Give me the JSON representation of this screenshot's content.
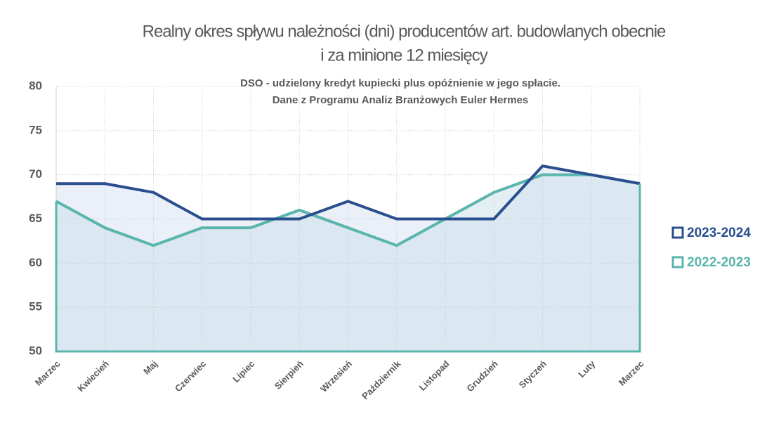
{
  "chart_data": {
    "type": "line",
    "title": [
      "Realny okres spływu należności (dni) producentów art. budowlanych obecnie",
      "i za minione 12 miesięcy"
    ],
    "subtitle": [
      "DSO - udzielony kredyt kupiecki plus opóźnienie w jego spłacie.",
      "Dane z Programu Analiz Branżowych Euler Hermes"
    ],
    "categories": [
      "Marzec",
      "Kwiecień",
      "Maj",
      "Czerwiec",
      "Lipiec",
      "Sierpień",
      "Wrzesień",
      "Październik",
      "Listopad",
      "Grudzień",
      "Styczeń",
      "Luty",
      "Marzec"
    ],
    "series": [
      {
        "name": "2023-2024",
        "color": "#2a4f8f",
        "values": [
          69,
          69,
          68,
          65,
          65,
          65,
          67,
          65,
          65,
          65,
          71,
          70,
          69
        ]
      },
      {
        "name": "2022-2023",
        "color": "#5ab5ad",
        "values": [
          67,
          64,
          62,
          64,
          64,
          66,
          64,
          62,
          65,
          68,
          70,
          70,
          69
        ]
      }
    ],
    "ylim": [
      50,
      80
    ],
    "yticks": [
      50,
      55,
      60,
      65,
      70,
      75,
      80
    ],
    "grid": true,
    "legend": "right"
  }
}
